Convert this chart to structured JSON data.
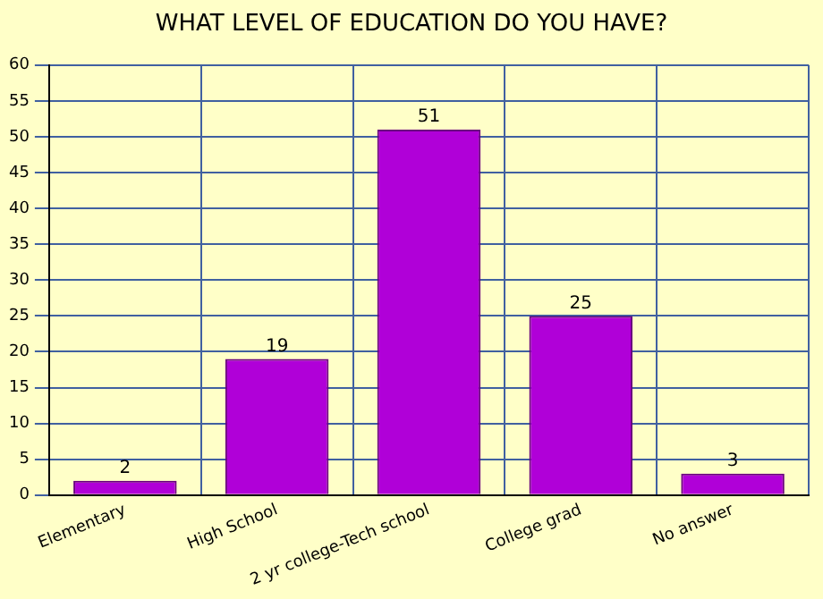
{
  "chart_data": {
    "type": "bar",
    "title": "WHAT LEVEL OF EDUCATION DO YOU HAVE?",
    "categories": [
      "Elementary",
      "High School",
      "2 yr college-Tech school",
      "College grad",
      "No answer"
    ],
    "values": [
      2,
      19,
      51,
      25,
      3
    ],
    "color": "#b000d8",
    "ylim": [
      0,
      60
    ],
    "yticks": [
      0,
      5,
      10,
      15,
      20,
      25,
      30,
      35,
      40,
      45,
      50,
      55,
      60
    ],
    "grid": true,
    "data_labels": true
  }
}
